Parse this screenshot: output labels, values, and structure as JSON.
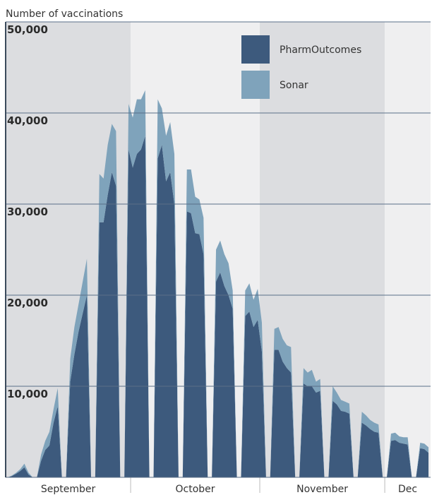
{
  "chart_data": {
    "type": "stacked_area",
    "y_axis_label": "Number of vaccinations",
    "months": [
      {
        "label": "September",
        "days": 30
      },
      {
        "label": "October",
        "days": 31
      },
      {
        "label": "November",
        "days": 30
      },
      {
        "label": "Dec",
        "days": 11
      }
    ],
    "categories": [
      null,
      null,
      null,
      null,
      null,
      null,
      null,
      null,
      null,
      null,
      null,
      null,
      null,
      null,
      null,
      null,
      null,
      null,
      null,
      null,
      null,
      null,
      null,
      null,
      null,
      null,
      null,
      null,
      null,
      null,
      null,
      null,
      null,
      null,
      null,
      null,
      null,
      null,
      null,
      null,
      null,
      null,
      null,
      null,
      null,
      null,
      null,
      null,
      null,
      null,
      null,
      null,
      null,
      null,
      null,
      null,
      null,
      null,
      null,
      null,
      null,
      null,
      null,
      null,
      null,
      null,
      null,
      null,
      null,
      null,
      null,
      null,
      null,
      null,
      null,
      null,
      null,
      null,
      null,
      null,
      null,
      null,
      null,
      null,
      null,
      null,
      null,
      null,
      null,
      null,
      null,
      null,
      null,
      null,
      null,
      null,
      null,
      null,
      null,
      null,
      null,
      null
    ],
    "series": [
      {
        "name": "PharmOutcomes",
        "color": "#3d5a7d",
        "values": [
          0,
          150,
          400,
          700,
          1100,
          300,
          0,
          0,
          1800,
          3000,
          3500,
          6000,
          7800,
          0,
          0,
          10500,
          13500,
          16000,
          18000,
          20000,
          0,
          0,
          28000,
          28000,
          31000,
          33500,
          32000,
          0,
          0,
          36000,
          34000,
          35500,
          36000,
          37500,
          0,
          0,
          35000,
          36500,
          32500,
          33500,
          30000,
          0,
          0,
          29200,
          29000,
          26800,
          26700,
          24500,
          0,
          0,
          21500,
          22500,
          21000,
          20000,
          18500,
          0,
          0,
          17700,
          18200,
          16500,
          17300,
          13800,
          0,
          0,
          14000,
          14000,
          12700,
          12000,
          11500,
          0,
          0,
          10300,
          10000,
          10000,
          9300,
          9500,
          0,
          0,
          8400,
          8000,
          7300,
          7200,
          7000,
          0,
          0,
          6000,
          5700,
          5300,
          5000,
          4900,
          0,
          0,
          4000,
          4100,
          3800,
          3700,
          3600,
          0,
          0,
          3200,
          3100,
          2700
        ]
      },
      {
        "name": "Sonar",
        "color": "#7fa3bb",
        "values": [
          0,
          50,
          100,
          200,
          400,
          200,
          0,
          0,
          700,
          1000,
          1500,
          1500,
          2000,
          0,
          0,
          2500,
          3000,
          3000,
          3500,
          4000,
          0,
          0,
          5300,
          4800,
          5500,
          5300,
          6000,
          0,
          0,
          5000,
          5500,
          6000,
          5500,
          5000,
          0,
          0,
          6500,
          4000,
          5000,
          5500,
          5500,
          0,
          0,
          4600,
          4800,
          4000,
          3800,
          4000,
          0,
          0,
          3500,
          3500,
          3500,
          3500,
          2000,
          0,
          0,
          2800,
          3100,
          3000,
          3400,
          3200,
          0,
          0,
          2300,
          2500,
          2500,
          2500,
          2800,
          0,
          0,
          1700,
          1500,
          1800,
          1200,
          1300,
          0,
          0,
          1600,
          1300,
          1200,
          1100,
          1100,
          0,
          0,
          1200,
          1100,
          1000,
          1000,
          900,
          0,
          0,
          800,
          800,
          700,
          700,
          800,
          0,
          0,
          600,
          600,
          600
        ]
      }
    ],
    "ylim": [
      0,
      50000
    ],
    "yticks": [
      {
        "value": 10000,
        "label": "10,000"
      },
      {
        "value": 20000,
        "label": "20,000"
      },
      {
        "value": 30000,
        "label": "30,000"
      },
      {
        "value": 40000,
        "label": "40,000"
      },
      {
        "value": 50000,
        "label": "50,000"
      }
    ],
    "grid": true,
    "band_colors": [
      "#dcdde0",
      "#efeff0"
    ],
    "legend": "top-right"
  }
}
